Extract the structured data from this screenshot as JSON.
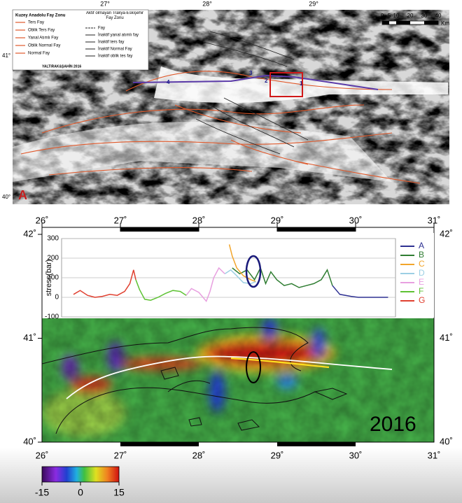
{
  "top_map": {
    "legend_left": {
      "title": "Kuzey Anadolu Fay Zonu",
      "items": [
        "Ters Fay",
        "Oblik Ters Fay",
        "Yanal Atımlı Fay",
        "Oblik Normal Fay",
        "Normal Fay"
      ],
      "credit": "YALTIRAK&ŞAHİN 2016"
    },
    "legend_right": {
      "title": "Aktif olmayan Trakya-Eskişehir Fay Zonu",
      "items": [
        "Fay",
        "İnaktif yanal atımlı fay",
        "İnaktif ters fay",
        "İnaktif Normal Fay",
        "İnaktif oblik tes fay"
      ]
    },
    "scale": {
      "labels": [
        "0",
        "5",
        "10",
        "20",
        "30",
        "40"
      ],
      "unit": "Km"
    },
    "lon_labels": [
      "27°",
      "28°",
      "29°"
    ],
    "lat_labels": [
      "41°",
      "40°"
    ],
    "segments": [
      "1",
      "2",
      "3",
      "4"
    ],
    "panel_label": "A"
  },
  "chart_data": {
    "type": "line",
    "ylabel": "stress(bar)",
    "xlim": [
      26,
      30.5
    ],
    "ylim": [
      -100,
      300
    ],
    "yticks": [
      -100,
      0,
      100,
      200,
      300
    ],
    "grid": true,
    "series": [
      {
        "name": "A",
        "color": "#2e3192",
        "x": [
          29.65,
          29.75,
          29.9,
          30.0,
          30.2,
          30.4
        ],
        "values": [
          60,
          15,
          5,
          0,
          0,
          0
        ]
      },
      {
        "name": "B",
        "color": "#2f7d32",
        "x": [
          28.3,
          28.4,
          28.5,
          28.6,
          28.68,
          28.75,
          28.82,
          28.9,
          29.0,
          29.1,
          29.2,
          29.3,
          29.4,
          29.5,
          29.58,
          29.65
        ],
        "values": [
          150,
          120,
          140,
          90,
          150,
          70,
          130,
          90,
          60,
          70,
          50,
          60,
          70,
          90,
          140,
          60
        ]
      },
      {
        "name": "C",
        "color": "#f2a52b",
        "x": [
          28.26,
          28.3,
          28.36,
          28.45,
          28.55,
          28.62
        ],
        "values": [
          270,
          210,
          150,
          110,
          90,
          80
        ]
      },
      {
        "name": "D",
        "color": "#9ccfe4",
        "x": [
          28.2,
          28.28,
          28.36,
          28.45,
          28.55,
          28.62
        ],
        "values": [
          120,
          140,
          110,
          75,
          70,
          80
        ]
      },
      {
        "name": "E",
        "color": "#e8a0e0",
        "x": [
          27.68,
          27.75,
          27.85,
          27.95,
          28.0,
          28.05,
          28.12,
          28.2
        ],
        "values": [
          10,
          45,
          25,
          -20,
          30,
          100,
          150,
          120
        ]
      },
      {
        "name": "F",
        "color": "#5ec234",
        "x": [
          27.0,
          27.05,
          27.12,
          27.2,
          27.3,
          27.4,
          27.5,
          27.6,
          27.68
        ],
        "values": [
          90,
          40,
          -10,
          -15,
          0,
          20,
          35,
          30,
          10
        ]
      },
      {
        "name": "G",
        "color": "#e04030",
        "x": [
          26.16,
          26.25,
          26.35,
          26.45,
          26.55,
          26.65,
          26.75,
          26.85,
          26.92,
          26.97,
          27.0
        ],
        "values": [
          15,
          35,
          10,
          0,
          5,
          15,
          10,
          30,
          70,
          140,
          90
        ]
      }
    ]
  },
  "bottom_map": {
    "xlim": [
      26,
      31
    ],
    "ylim": [
      40,
      42
    ],
    "xticks": [
      {
        "value": 26,
        "label": "26˚"
      },
      {
        "value": 27,
        "label": "27˚"
      },
      {
        "value": 28,
        "label": "28˚"
      },
      {
        "value": 29,
        "label": "29˚"
      },
      {
        "value": 30,
        "label": "30˚"
      },
      {
        "value": 31,
        "label": "31˚"
      }
    ],
    "yticks": [
      {
        "value": 40,
        "label": "40˚"
      },
      {
        "value": 41,
        "label": "41˚"
      },
      {
        "value": 42,
        "label": "42˚"
      }
    ],
    "year": "2016",
    "colorbar": {
      "lim": [
        -15,
        15
      ],
      "ticks": [
        -15,
        0,
        15
      ]
    }
  }
}
